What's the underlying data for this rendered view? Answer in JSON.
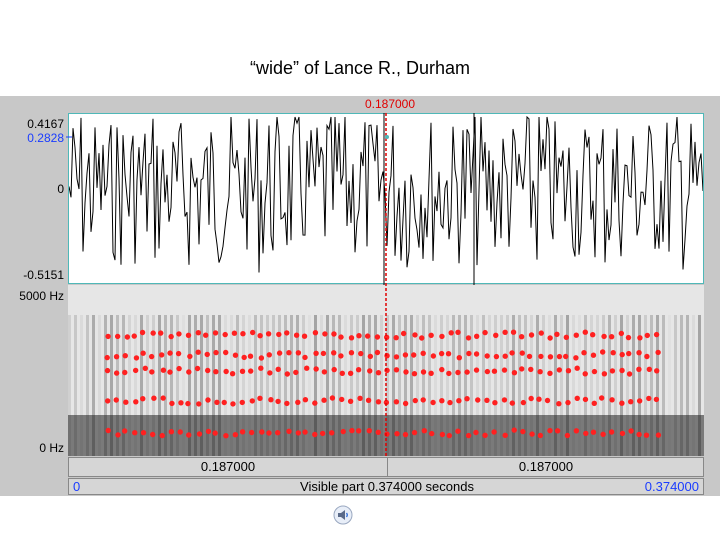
{
  "title": "“wide” of Lance R., Durham",
  "cursor": {
    "time_label": "0.187000",
    "time_fraction": 0.5
  },
  "waveform": {
    "y_max_label": "0.4167",
    "y_cursor_label": "0.2828",
    "y_zero_label": "0",
    "y_min_label": "-0.5151",
    "y_max": 0.4167,
    "y_min": -0.5151,
    "y_cursor": 0.2828
  },
  "spectrogram": {
    "top_label": "5000 Hz",
    "bottom_label": "0 Hz"
  },
  "selection_bar": {
    "left": "0.187000",
    "right": "0.187000"
  },
  "visible_bar": {
    "start": "0",
    "caption": "Visible part 0.374000 seconds",
    "end": "0.374000"
  },
  "colors": {
    "cursor": "#e00000",
    "formant": "#ff2020",
    "axis_blue": "#1a3cff",
    "waveform_border": "#4fb8b8"
  },
  "icons": {
    "speaker": "speaker-icon"
  }
}
